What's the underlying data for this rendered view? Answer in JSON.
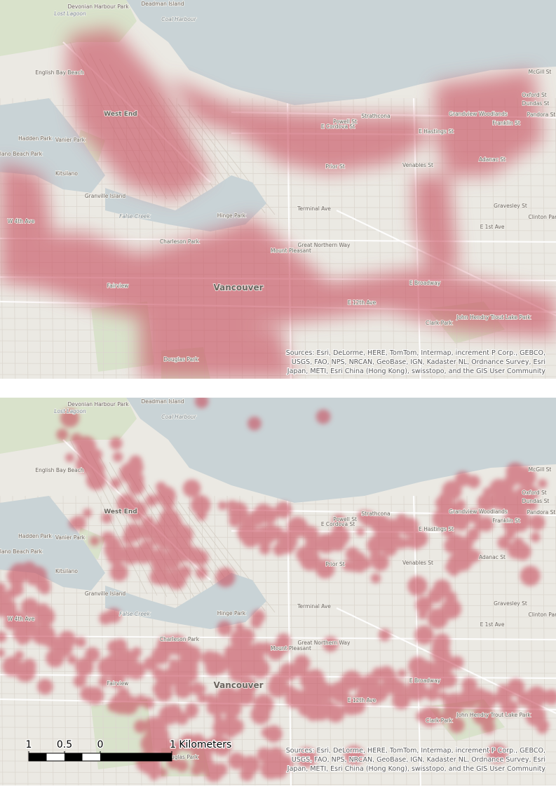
{
  "place_labels": [
    "Lost Lagoon",
    "Devonian Harbour Park",
    "Deadman Island",
    "Coal Harbour",
    "English Bay Beach",
    "West End",
    "Hadden Park",
    "Vanier Park",
    "Kitsilano Beach Park",
    "Kitsilano",
    "Granville Island",
    "False Creek",
    "Charleson Park",
    "Hinge Park",
    "Mount Pleasant",
    "Vancouver",
    "Fairview",
    "Strathcona",
    "Grandview Woodlands",
    "E Hastings St",
    "E Cordova St",
    "Powell St",
    "Prior St",
    "Venables St",
    "Terminal Ave",
    "Great Northern Way",
    "E Broadway",
    "E 12th Ave",
    "W 4th Ave",
    "Clark Park",
    "John Hendry Trout Lake Park",
    "Douglas Park",
    "McGill St",
    "Oxford St",
    "Dundas St",
    "Pandora St",
    "Franklin St",
    "Adanac St",
    "Gravesley St",
    "E 1st Ave",
    "Clinton Park"
  ],
  "attribution": [
    "Sources: Esri, DeLorme, HERE, TomTom, Intermap, increment P Corp., GEBCO,",
    "USGS, FAO, NPS, NRCAN, GeoBase, IGN, Kadaster NL, Ordnance Survey, Esri",
    "Japan, METI, Esri China (Hong Kong), swisstopo, and the GIS User Community"
  ],
  "scale_bar": {
    "ticks": [
      {
        "value": -1,
        "label": "1"
      },
      {
        "value": -0.5,
        "label": "0.5"
      },
      0,
      {
        "value": 1,
        "label": "1 Kilometers"
      }
    ]
  }
}
